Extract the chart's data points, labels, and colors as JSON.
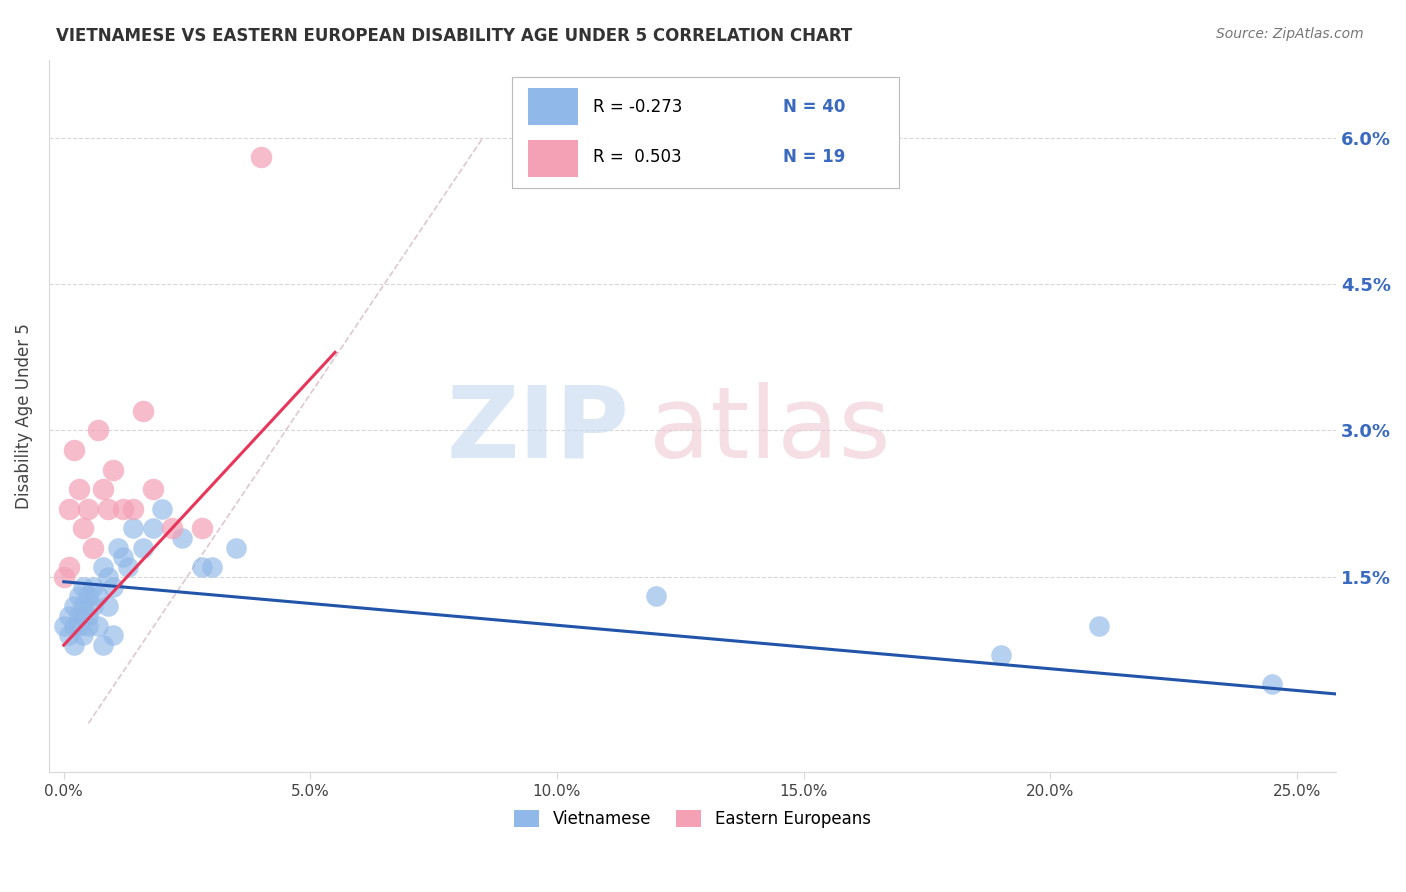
{
  "title": "VIETNAMESE VS EASTERN EUROPEAN DISABILITY AGE UNDER 5 CORRELATION CHART",
  "source": "Source: ZipAtlas.com",
  "xlabel_ticks": [
    0.0,
    0.05,
    0.1,
    0.15,
    0.2,
    0.25
  ],
  "xlabel_labels": [
    "0.0%",
    "5.0%",
    "10.0%",
    "15.0%",
    "20.0%",
    "25.0%"
  ],
  "ylabel_ticks": [
    0.0,
    0.015,
    0.03,
    0.045,
    0.06
  ],
  "ylabel_labels_right": [
    "",
    "1.5%",
    "3.0%",
    "4.5%",
    "6.0%"
  ],
  "xlim": [
    -0.003,
    0.258
  ],
  "ylim": [
    -0.005,
    0.068
  ],
  "viet_color": "#90b8e8",
  "ee_color": "#f4a0b5",
  "viet_line_color": "#2255aa",
  "ee_line_color": "#e8355a",
  "ref_line_color": "#d0b0c0",
  "ylabel": "Disability Age Under 5",
  "background_color": "#ffffff",
  "grid_color": "#d8d8d8",
  "viet_scatter_x": [
    0.0,
    0.001,
    0.001,
    0.002,
    0.002,
    0.002,
    0.003,
    0.003,
    0.003,
    0.004,
    0.004,
    0.004,
    0.005,
    0.005,
    0.005,
    0.006,
    0.006,
    0.007,
    0.007,
    0.008,
    0.008,
    0.009,
    0.009,
    0.01,
    0.01,
    0.011,
    0.012,
    0.013,
    0.014,
    0.016,
    0.018,
    0.02,
    0.024,
    0.028,
    0.03,
    0.035,
    0.12,
    0.19,
    0.21,
    0.245
  ],
  "viet_scatter_y": [
    0.01,
    0.009,
    0.011,
    0.008,
    0.012,
    0.01,
    0.01,
    0.013,
    0.011,
    0.009,
    0.014,
    0.012,
    0.011,
    0.013,
    0.01,
    0.012,
    0.014,
    0.01,
    0.013,
    0.008,
    0.016,
    0.012,
    0.015,
    0.014,
    0.009,
    0.018,
    0.017,
    0.016,
    0.02,
    0.018,
    0.02,
    0.022,
    0.019,
    0.016,
    0.016,
    0.018,
    0.013,
    0.007,
    0.01,
    0.004
  ],
  "ee_scatter_x": [
    0.0,
    0.001,
    0.001,
    0.002,
    0.003,
    0.004,
    0.005,
    0.006,
    0.007,
    0.008,
    0.009,
    0.01,
    0.012,
    0.014,
    0.016,
    0.018,
    0.022,
    0.028,
    0.04
  ],
  "ee_scatter_y": [
    0.015,
    0.016,
    0.022,
    0.028,
    0.024,
    0.02,
    0.022,
    0.018,
    0.03,
    0.024,
    0.022,
    0.026,
    0.022,
    0.022,
    0.032,
    0.024,
    0.02,
    0.02,
    0.058
  ],
  "viet_line_x": [
    0.0,
    0.258
  ],
  "viet_line_y": [
    0.0145,
    0.003
  ],
  "ee_line_x": [
    0.0,
    0.055
  ],
  "ee_line_y": [
    0.008,
    0.038
  ],
  "ref_line_x": [
    0.005,
    0.085
  ],
  "ref_line_y": [
    0.0,
    0.06
  ],
  "watermark_zip_color": "#c5d8f0",
  "watermark_atlas_color": "#f0c8d5"
}
